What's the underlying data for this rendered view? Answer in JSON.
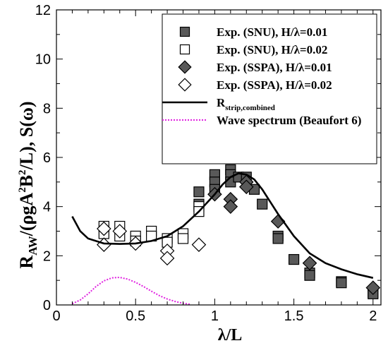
{
  "chart_data": {
    "type": "scatter",
    "xlabel": {
      "main": "λ/L"
    },
    "ylabel": {
      "R": "R",
      "sub": "AW",
      "rest1": "/(ρgA",
      "sup1": "2",
      "rest2": "B",
      "sup2": "2",
      "rest3": "/L), S(ω)"
    },
    "xlim": [
      0,
      2.05
    ],
    "ylim": [
      0,
      12
    ],
    "x_ticks": [
      0,
      0.5,
      1,
      1.5,
      2
    ],
    "x_tick_labels": [
      "0",
      "0.5",
      "1",
      "1.5",
      "2"
    ],
    "y_ticks": [
      0,
      2,
      4,
      6,
      8,
      10,
      12
    ],
    "y_tick_labels": [
      "0",
      "2",
      "4",
      "6",
      "8",
      "10",
      "12"
    ],
    "grid": false,
    "legend_position": "top-right",
    "series": [
      {
        "name": "Exp. (SNU), H/λ=0.01",
        "marker": "square-filled",
        "color": "#595959",
        "points": [
          [
            0.9,
            4.6
          ],
          [
            0.9,
            4.1
          ],
          [
            1.0,
            5.3
          ],
          [
            1.0,
            5.0
          ],
          [
            1.0,
            4.7
          ],
          [
            1.1,
            5.5
          ],
          [
            1.1,
            5.3
          ],
          [
            1.1,
            5.0
          ],
          [
            1.15,
            5.2
          ],
          [
            1.2,
            5.2
          ],
          [
            1.25,
            4.7
          ],
          [
            1.3,
            4.1
          ],
          [
            1.4,
            2.8
          ],
          [
            1.4,
            2.7
          ],
          [
            1.5,
            1.85
          ],
          [
            1.6,
            1.3
          ],
          [
            1.6,
            1.2
          ],
          [
            1.8,
            0.95
          ],
          [
            1.8,
            0.9
          ],
          [
            2.0,
            0.5
          ],
          [
            2.0,
            0.45
          ]
        ]
      },
      {
        "name": "Exp. (SNU), H/λ=0.02",
        "marker": "square-open",
        "color": "#000000",
        "points": [
          [
            0.3,
            3.2
          ],
          [
            0.3,
            2.9
          ],
          [
            0.4,
            3.2
          ],
          [
            0.4,
            2.8
          ],
          [
            0.5,
            2.8
          ],
          [
            0.5,
            2.6
          ],
          [
            0.6,
            3.0
          ],
          [
            0.6,
            2.8
          ],
          [
            0.7,
            2.7
          ],
          [
            0.7,
            2.55
          ],
          [
            0.8,
            2.9
          ],
          [
            0.8,
            2.7
          ],
          [
            0.9,
            4.0
          ],
          [
            0.9,
            3.8
          ]
        ]
      },
      {
        "name": "Exp. (SSPA), H/λ=0.01",
        "marker": "diamond-filled",
        "color": "#595959",
        "points": [
          [
            1.0,
            4.5
          ],
          [
            1.1,
            4.3
          ],
          [
            1.1,
            4.0
          ],
          [
            1.2,
            5.0
          ],
          [
            1.2,
            4.8
          ],
          [
            1.4,
            3.4
          ],
          [
            1.6,
            1.7
          ],
          [
            2.0,
            0.7
          ]
        ]
      },
      {
        "name": "Exp. (SSPA), H/λ=0.02",
        "marker": "diamond-open",
        "color": "#000000",
        "points": [
          [
            0.3,
            3.1
          ],
          [
            0.3,
            2.45
          ],
          [
            0.4,
            3.0
          ],
          [
            0.5,
            2.5
          ],
          [
            0.7,
            2.2
          ],
          [
            0.7,
            1.9
          ],
          [
            0.9,
            2.45
          ]
        ]
      },
      {
        "name": "R_strip,combined",
        "legend_main": "R",
        "legend_sub": "strip,combined",
        "style": "solid",
        "color": "#000000",
        "points": [
          [
            0.1,
            3.6
          ],
          [
            0.15,
            3.0
          ],
          [
            0.2,
            2.7
          ],
          [
            0.3,
            2.5
          ],
          [
            0.4,
            2.48
          ],
          [
            0.5,
            2.5
          ],
          [
            0.6,
            2.6
          ],
          [
            0.7,
            2.8
          ],
          [
            0.8,
            3.2
          ],
          [
            0.9,
            3.8
          ],
          [
            1.0,
            4.5
          ],
          [
            1.05,
            4.9
          ],
          [
            1.1,
            5.2
          ],
          [
            1.15,
            5.35
          ],
          [
            1.2,
            5.3
          ],
          [
            1.25,
            5.1
          ],
          [
            1.3,
            4.7
          ],
          [
            1.35,
            4.2
          ],
          [
            1.4,
            3.7
          ],
          [
            1.5,
            2.8
          ],
          [
            1.6,
            2.1
          ],
          [
            1.7,
            1.7
          ],
          [
            1.8,
            1.45
          ],
          [
            1.9,
            1.25
          ],
          [
            2.0,
            1.1
          ]
        ]
      },
      {
        "name": "Wave spectrum (Beaufort 6)",
        "style": "dotted",
        "color": "#e020e0",
        "points": [
          [
            0.1,
            0.05
          ],
          [
            0.15,
            0.2
          ],
          [
            0.2,
            0.45
          ],
          [
            0.25,
            0.75
          ],
          [
            0.3,
            0.98
          ],
          [
            0.35,
            1.1
          ],
          [
            0.4,
            1.12
          ],
          [
            0.45,
            1.05
          ],
          [
            0.5,
            0.92
          ],
          [
            0.55,
            0.75
          ],
          [
            0.6,
            0.56
          ],
          [
            0.65,
            0.38
          ],
          [
            0.7,
            0.24
          ],
          [
            0.75,
            0.14
          ],
          [
            0.8,
            0.07
          ],
          [
            0.85,
            0.02
          ]
        ]
      }
    ]
  }
}
